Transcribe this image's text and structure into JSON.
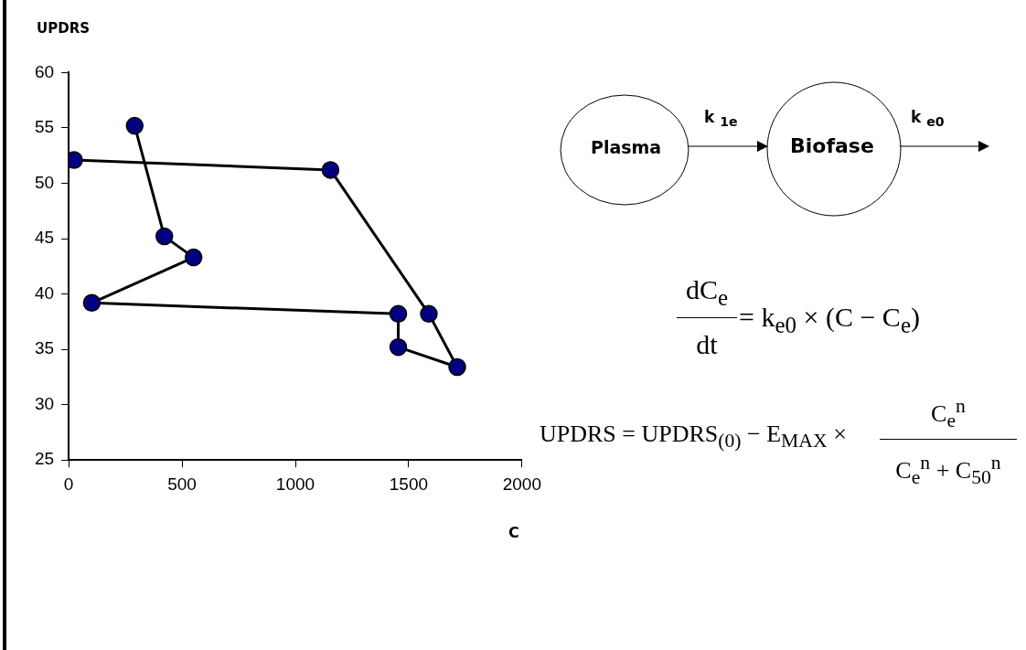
{
  "chart_data": {
    "type": "line",
    "ylabel": "UPDRS",
    "xlabel": "C",
    "x": [
      291,
      422,
      551,
      102,
      1454,
      1454,
      1714,
      1589,
      1155,
      24
    ],
    "series": [
      {
        "color": "#000080",
        "values": [
          55.2,
          45.2,
          43.3,
          39.2,
          38.2,
          35.2,
          33.4,
          38.2,
          51.2,
          52.1
        ]
      }
    ],
    "xlim": [
      0,
      2000
    ],
    "xticks": [
      0,
      500,
      1000,
      1500,
      2000
    ],
    "ylim": [
      25,
      60
    ],
    "yticks": [
      25,
      30,
      35,
      40,
      45,
      50,
      55,
      60
    ],
    "grid": false,
    "legend": false,
    "marker": "circle",
    "line_style": "solid",
    "annotations": [
      "Plasma",
      "Biofase",
      "k $_{1e}$",
      "k $_{e0}$",
      "dC$_{e}$",
      "dt",
      "= k$_{e0}$ × (C − C$_{e}$)",
      "UPDRS = UPDRS$_{(0)}$ − E$_{MAX}$ ×",
      "C$_{e}$$^{n}$",
      "C$_{e}$$^{n}$ + C$_{50}$$^{n}$"
    ]
  }
}
